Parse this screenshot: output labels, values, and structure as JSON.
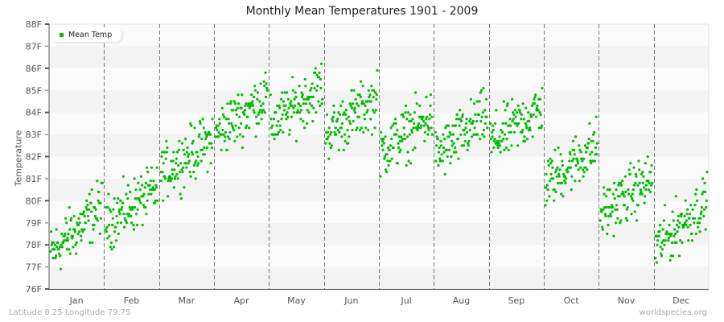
{
  "title": "Monthly Mean Temperatures 1901 - 2009",
  "y_axis_label": "Temperature",
  "legend": {
    "label": "Mean Temp",
    "color": "#00bb00"
  },
  "footer": {
    "location": "Latitude 8.25 Longitude 79.75",
    "credit": "worldspecies.org"
  },
  "colors": {
    "point": "#00bb00",
    "band_light": "#fbfbfb",
    "band_dark": "#f3f3f3",
    "grid_dash": "#777777",
    "axis": "#555555"
  },
  "chart_data": {
    "type": "scatter",
    "title": "Monthly Mean Temperatures 1901 - 2009",
    "xlabel": "",
    "ylabel": "Temperature",
    "ylim": [
      76,
      88
    ],
    "y_ticks": [
      "76F",
      "77F",
      "78F",
      "79F",
      "80F",
      "81F",
      "82F",
      "83F",
      "84F",
      "85F",
      "86F",
      "87F",
      "88F"
    ],
    "categories": [
      "Jan",
      "Feb",
      "Mar",
      "Apr",
      "May",
      "Jun",
      "Jul",
      "Aug",
      "Sep",
      "Oct",
      "Nov",
      "Dec"
    ],
    "legend_position": "top-left",
    "grid": "horizontal bands, dashed vertical month separators",
    "years": [
      1901,
      2009
    ],
    "series": [
      {
        "name": "Mean Temp",
        "monthly_ranges": [
          {
            "month": "Jan",
            "min": 76.1,
            "max": 80.9,
            "trend_start": 77.6,
            "trend_end": 79.8
          },
          {
            "month": "Feb",
            "min": 76.8,
            "max": 81.5,
            "trend_start": 79.0,
            "trend_end": 80.5
          },
          {
            "month": "Mar",
            "min": 80.0,
            "max": 83.7,
            "trend_start": 81.2,
            "trend_end": 82.8
          },
          {
            "month": "Apr",
            "min": 81.9,
            "max": 87.1,
            "trend_start": 83.0,
            "trend_end": 84.8
          },
          {
            "month": "May",
            "min": 82.2,
            "max": 86.6,
            "trend_start": 83.4,
            "trend_end": 85.2
          },
          {
            "month": "Jun",
            "min": 81.9,
            "max": 86.2,
            "trend_start": 83.0,
            "trend_end": 84.6
          },
          {
            "month": "Jul",
            "min": 81.1,
            "max": 85.1,
            "trend_start": 82.2,
            "trend_end": 83.9
          },
          {
            "month": "Aug",
            "min": 80.6,
            "max": 85.1,
            "trend_start": 82.0,
            "trend_end": 83.9
          },
          {
            "month": "Sep",
            "min": 81.8,
            "max": 85.1,
            "trend_start": 82.6,
            "trend_end": 84.2
          },
          {
            "month": "Oct",
            "min": 79.6,
            "max": 83.8,
            "trend_start": 80.8,
            "trend_end": 82.5
          },
          {
            "month": "Nov",
            "min": 78.4,
            "max": 82.0,
            "trend_start": 79.4,
            "trend_end": 81.0
          },
          {
            "month": "Dec",
            "min": 76.8,
            "max": 81.3,
            "trend_start": 77.9,
            "trend_end": 80.0
          }
        ]
      }
    ]
  }
}
